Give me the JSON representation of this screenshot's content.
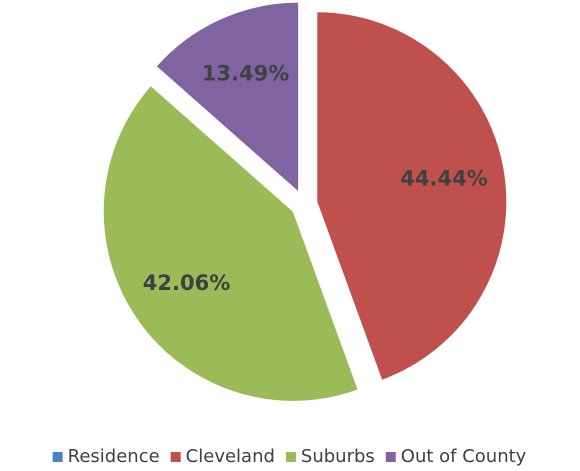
{
  "chart_data": {
    "type": "pie",
    "categories": [
      "Residence",
      "Cleveland",
      "Suburbs",
      "Out of County"
    ],
    "values": [
      0,
      44.44,
      42.06,
      13.49
    ],
    "value_labels": [
      null,
      "44.44%",
      "42.06%",
      "13.49%"
    ],
    "colors": [
      "#4f81bd",
      "#c0504d",
      "#9bbb59",
      "#8064a2"
    ],
    "legend": "bottom"
  }
}
